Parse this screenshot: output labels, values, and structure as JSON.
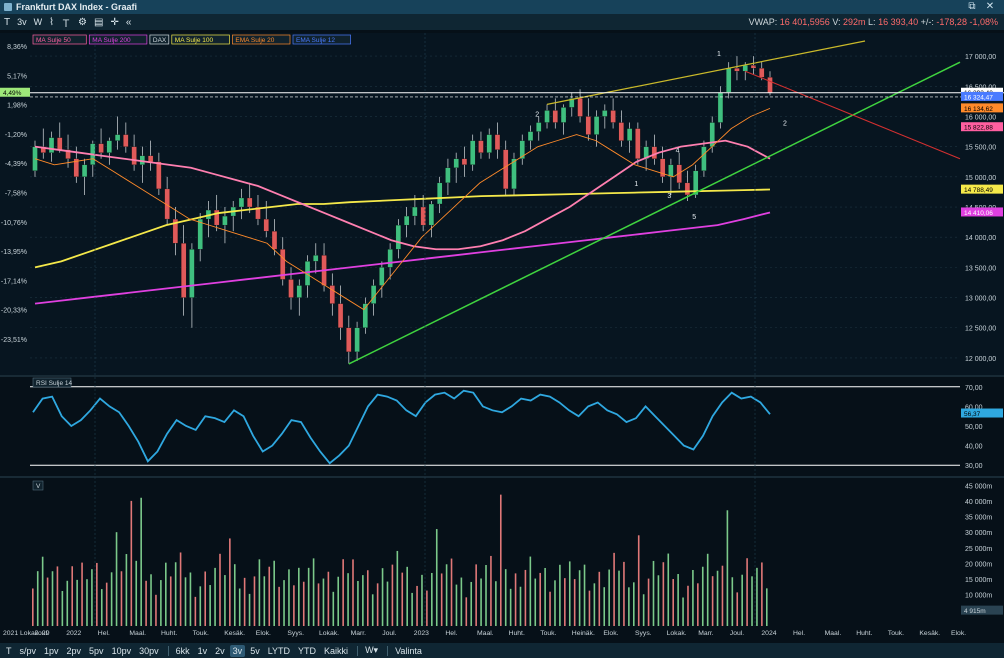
{
  "window": {
    "title": "Frankfurt DAX Index - Graafi"
  },
  "toolbar": {
    "items": [
      "3v",
      "W"
    ],
    "icons": [
      "line-chart-icon",
      "text-tool-icon",
      "settings-icon",
      "table-icon",
      "crosshair-icon",
      "collapse-icon"
    ]
  },
  "header": {
    "vwap_label": "VWAP:",
    "vwap_value": "16 401,5956",
    "v_label": "V:",
    "v_value": "292m",
    "l_label": "L:",
    "l_value": "16 393,40",
    "change_label": "+/-:",
    "change_value": "-178,28",
    "change_pct": "-1,08%"
  },
  "legend": [
    {
      "label": "MA Sulje 50",
      "color": "#ff5fa0"
    },
    {
      "label": "MA Sulje 200",
      "color": "#e040e0"
    },
    {
      "label": "DAX",
      "color": "#cfd8dc"
    },
    {
      "label": "MA Sulje 100",
      "color": "#f5e94a"
    },
    {
      "label": "EMA Sulje 20",
      "color": "#ff8a2a"
    },
    {
      "label": "EMA Sulje 12",
      "color": "#4a7bff"
    }
  ],
  "price_axis": [
    "17 000,00",
    "16 500,00",
    "16 000,00",
    "15 500,00",
    "15 000,00",
    "14 500,00",
    "14 000,00",
    "13 500,00",
    "13 000,00",
    "12 500,00",
    "12 000,00"
  ],
  "pct_axis": [
    "8,36%",
    "5,17%",
    "1,98%",
    "-1,20%",
    "-4,39%",
    "-7,58%",
    "-10,76%",
    "-13,95%",
    "-17,14%",
    "-20,33%",
    "-23,51%"
  ],
  "current_pct": "4,49%",
  "price_tags": [
    {
      "label": "16 393,40",
      "price": 16393,
      "bg": "#ffffff",
      "fg": "#000000"
    },
    {
      "label": "16 324,47",
      "price": 16324,
      "bg": "#4a7bff",
      "fg": "#ffffff"
    },
    {
      "label": "16 134,62",
      "price": 16134,
      "bg": "#ff8a2a",
      "fg": "#000000"
    },
    {
      "label": "15 822,88",
      "price": 15822,
      "bg": "#ff5fa0",
      "fg": "#000000"
    },
    {
      "label": "14 788,49",
      "price": 14788,
      "bg": "#f5e94a",
      "fg": "#000000"
    },
    {
      "label": "14 410,06",
      "price": 14410,
      "bg": "#e040e0",
      "fg": "#ffffff"
    }
  ],
  "wave_labels": [
    "1",
    "2",
    "2",
    "4",
    "1",
    "3",
    "5"
  ],
  "rsi": {
    "label": "RSI Sulje 14",
    "axis": [
      "70,00",
      "60,00",
      "50,00",
      "40,00",
      "30,00"
    ],
    "current": "56,37",
    "values": [
      57,
      64,
      65,
      55,
      50,
      53,
      58,
      64,
      60,
      57,
      50,
      42,
      32,
      37,
      46,
      53,
      50,
      48,
      55,
      54,
      52,
      58,
      55,
      45,
      37,
      40,
      46,
      53,
      52,
      44,
      37,
      31,
      35,
      40,
      50,
      60,
      66,
      65,
      63,
      58,
      55,
      62,
      66,
      67,
      64,
      68,
      67,
      60,
      58,
      57,
      60,
      64,
      63,
      66,
      65,
      62,
      58,
      55,
      60,
      62,
      58,
      56,
      52,
      54,
      60,
      55,
      50,
      45,
      40,
      38,
      45,
      55,
      62,
      67,
      64,
      65,
      62,
      56
    ]
  },
  "volume": {
    "label": "V",
    "axis": [
      "45 000m",
      "40 000m",
      "35 000m",
      "30 000m",
      "25 000m",
      "20 000m",
      "15 000m",
      "10 000m"
    ],
    "current": "4 915m"
  },
  "price_series": {
    "candles": [
      [
        15100,
        15600,
        15000,
        15500
      ],
      [
        15500,
        15800,
        15300,
        15400
      ],
      [
        15400,
        15750,
        15250,
        15650
      ],
      [
        15650,
        15900,
        15400,
        15450
      ],
      [
        15450,
        15700,
        15150,
        15300
      ],
      [
        15300,
        15500,
        14900,
        15000
      ],
      [
        15000,
        15300,
        14700,
        15200
      ],
      [
        15200,
        15600,
        15000,
        15550
      ],
      [
        15550,
        15800,
        15300,
        15400
      ],
      [
        15400,
        15650,
        15200,
        15600
      ],
      [
        15600,
        16000,
        15450,
        15700
      ],
      [
        15700,
        15900,
        15400,
        15500
      ],
      [
        15500,
        15700,
        15100,
        15200
      ],
      [
        15200,
        15500,
        14900,
        15350
      ],
      [
        15350,
        15600,
        15100,
        15250
      ],
      [
        15250,
        15400,
        14700,
        14800
      ],
      [
        14800,
        15000,
        14200,
        14300
      ],
      [
        14300,
        14500,
        13700,
        13900
      ],
      [
        13900,
        14200,
        12700,
        13000
      ],
      [
        13000,
        13900,
        12500,
        13800
      ],
      [
        13800,
        14400,
        13600,
        14300
      ],
      [
        14300,
        14600,
        14000,
        14450
      ],
      [
        14450,
        14700,
        14100,
        14200
      ],
      [
        14200,
        14500,
        13900,
        14350
      ],
      [
        14350,
        14600,
        14100,
        14500
      ],
      [
        14500,
        14800,
        14300,
        14650
      ],
      [
        14650,
        14900,
        14400,
        14500
      ],
      [
        14500,
        14700,
        14200,
        14300
      ],
      [
        14300,
        14600,
        14000,
        14100
      ],
      [
        14100,
        14300,
        13700,
        13800
      ],
      [
        13800,
        14000,
        13200,
        13300
      ],
      [
        13300,
        13500,
        12800,
        13000
      ],
      [
        13000,
        13300,
        12700,
        13200
      ],
      [
        13200,
        13700,
        13000,
        13600
      ],
      [
        13600,
        13900,
        13400,
        13700
      ],
      [
        13700,
        13900,
        13100,
        13200
      ],
      [
        13200,
        13400,
        12700,
        12900
      ],
      [
        12900,
        13200,
        12300,
        12500
      ],
      [
        12500,
        12700,
        11900,
        12100
      ],
      [
        12100,
        12600,
        11950,
        12500
      ],
      [
        12500,
        13000,
        12400,
        12900
      ],
      [
        12900,
        13300,
        12700,
        13200
      ],
      [
        13200,
        13600,
        13000,
        13500
      ],
      [
        13500,
        13900,
        13300,
        13800
      ],
      [
        13800,
        14300,
        13650,
        14200
      ],
      [
        14200,
        14500,
        14000,
        14350
      ],
      [
        14350,
        14700,
        14200,
        14500
      ],
      [
        14500,
        14700,
        14100,
        14200
      ],
      [
        14200,
        14600,
        14000,
        14550
      ],
      [
        14550,
        15000,
        14400,
        14900
      ],
      [
        14900,
        15300,
        14700,
        15150
      ],
      [
        15150,
        15400,
        14900,
        15300
      ],
      [
        15300,
        15500,
        15000,
        15200
      ],
      [
        15200,
        15700,
        15100,
        15600
      ],
      [
        15600,
        15750,
        15300,
        15400
      ],
      [
        15400,
        15800,
        15300,
        15700
      ],
      [
        15700,
        15900,
        15300,
        15450
      ],
      [
        15450,
        15600,
        14700,
        14800
      ],
      [
        14800,
        15400,
        14700,
        15300
      ],
      [
        15300,
        15700,
        15200,
        15600
      ],
      [
        15600,
        15850,
        15450,
        15750
      ],
      [
        15750,
        16000,
        15600,
        15900
      ],
      [
        15900,
        16200,
        15800,
        16100
      ],
      [
        16100,
        16300,
        15800,
        15900
      ],
      [
        15900,
        16200,
        15700,
        16150
      ],
      [
        16150,
        16400,
        16000,
        16300
      ],
      [
        16300,
        16450,
        15900,
        16000
      ],
      [
        16000,
        16300,
        15600,
        15700
      ],
      [
        15700,
        16100,
        15500,
        16000
      ],
      [
        16000,
        16200,
        15800,
        16100
      ],
      [
        16100,
        16300,
        15800,
        15900
      ],
      [
        15900,
        16100,
        15500,
        15600
      ],
      [
        15600,
        15900,
        15400,
        15800
      ],
      [
        15800,
        15900,
        15200,
        15300
      ],
      [
        15300,
        15600,
        15100,
        15500
      ],
      [
        15500,
        15700,
        15200,
        15300
      ],
      [
        15300,
        15500,
        14900,
        15000
      ],
      [
        15000,
        15300,
        14700,
        15200
      ],
      [
        15200,
        15400,
        14800,
        14900
      ],
      [
        14900,
        15100,
        14600,
        14700
      ],
      [
        14700,
        15200,
        14650,
        15100
      ],
      [
        15100,
        15600,
        15000,
        15500
      ],
      [
        15500,
        16000,
        15400,
        15900
      ],
      [
        15900,
        16500,
        15800,
        16400
      ],
      [
        16400,
        16900,
        16300,
        16800
      ],
      [
        16800,
        17000,
        16600,
        16750
      ],
      [
        16750,
        16900,
        16600,
        16850
      ],
      [
        16850,
        17000,
        16700,
        16800
      ],
      [
        16800,
        16900,
        16600,
        16650
      ],
      [
        16650,
        16750,
        16350,
        16393
      ]
    ],
    "ma50": [
      15500,
      15450,
      15400,
      15350,
      15300,
      15250,
      15200,
      15150,
      15050,
      14950,
      14850,
      14700,
      14550,
      14400,
      14250,
      14100,
      13950,
      13850,
      13800,
      13800,
      13850,
      13950,
      14100,
      14300,
      14500,
      14750,
      15000,
      15250,
      15400,
      15500,
      15550,
      15600,
      15500,
      15300
    ],
    "ma100": [
      13500,
      13600,
      13750,
      13900,
      14050,
      14200,
      14300,
      14400,
      14450,
      14500,
      14550,
      14550,
      14580,
      14600,
      14620,
      14640,
      14660,
      14680,
      14690,
      14700,
      14710,
      14720,
      14730,
      14740,
      14750,
      14760,
      14770,
      14780,
      14790
    ],
    "ma200": [
      12900,
      12950,
      13000,
      13050,
      13100,
      13150,
      13200,
      13250,
      13300,
      13350,
      13400,
      13450,
      13500,
      13550,
      13600,
      13650,
      13700,
      13750,
      13800,
      13850,
      13900,
      13950,
      14000,
      14050,
      14100,
      14150,
      14200,
      14300,
      14410
    ],
    "ema20": [
      15300,
      15200,
      15250,
      15300,
      15100,
      14900,
      14700,
      14500,
      14300,
      14200,
      14100,
      14000,
      13900,
      13600,
      13400,
      13200,
      13000,
      12800,
      13200,
      13600,
      14000,
      14300,
      14600,
      14900,
      15100,
      15300,
      15500,
      15600,
      15700,
      15600,
      15400,
      15200,
      15100,
      15000,
      15200,
      15500,
      15800,
      16000,
      16134
    ]
  },
  "time_axis": [
    "2021 Lokak. 29",
    "Joul.",
    "2022",
    "Hel.",
    "Maal.",
    "Huht.",
    "Touk.",
    "Kesäk.",
    "Elok.",
    "Syys.",
    "Lokak.",
    "Marr.",
    "Joul.",
    "2023",
    "Hel.",
    "Maal.",
    "Huht.",
    "Touk.",
    "Heinäk.",
    "Elok.",
    "Syys.",
    "Lokak.",
    "Marr.",
    "Joul.",
    "2024",
    "Hel.",
    "Maal.",
    "Huht.",
    "Touk.",
    "Kesäk.",
    "Elok."
  ],
  "periods": {
    "left": [
      "T",
      "s/pv",
      "1pv",
      "2pv",
      "5pv",
      "10pv",
      "30pv"
    ],
    "right": [
      "6kk",
      "1v",
      "2v",
      "3v",
      "5v",
      "LYTD",
      "YTD",
      "Kaikki"
    ],
    "active": "3v",
    "w_label": "W▾",
    "selection": "Valinta"
  }
}
